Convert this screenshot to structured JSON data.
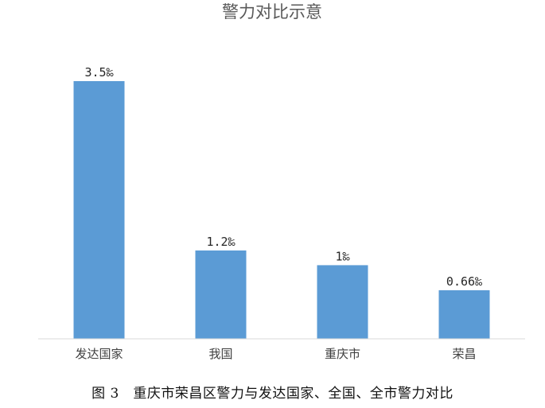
{
  "chart_data": {
    "type": "bar",
    "title": "警力对比示意",
    "categories": [
      "发达国家",
      "我国",
      "重庆市",
      "荣昌"
    ],
    "values": [
      3.5,
      1.2,
      1.0,
      0.66
    ],
    "value_labels": [
      "3.5‰",
      "1.2‰",
      "1‰",
      "0.66‰"
    ],
    "unit": "‰",
    "ylim": [
      0,
      3.5
    ],
    "grid": false,
    "legend": "none",
    "bar_color": "#5b9bd5",
    "xlabel": "",
    "ylabel": ""
  },
  "caption": "图 3　重庆市荣昌区警力与发达国家、全国、全市警力对比"
}
